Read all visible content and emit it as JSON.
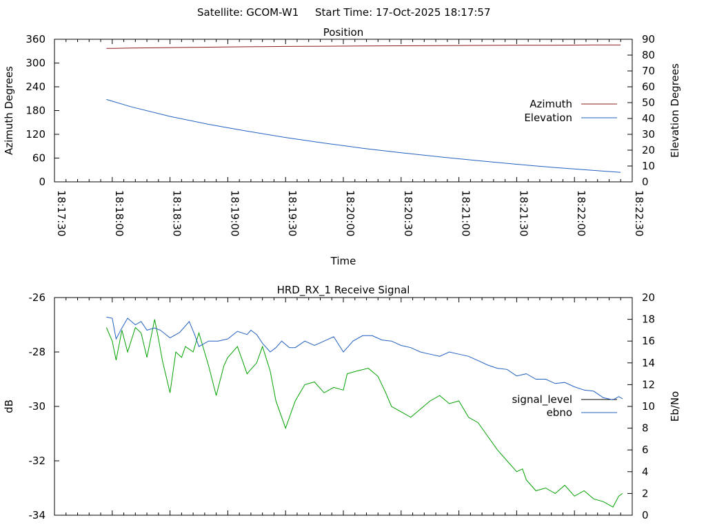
{
  "header": {
    "satellite": "Satellite: GCOM-W1",
    "start_time": "Start Time: 17-Oct-2025 18:17:57"
  },
  "colors": {
    "azimuth": "#8b1a1a",
    "elevation": "#1f5fbf",
    "signal_level": "#00a000",
    "ebno": "#1f5fbf",
    "legend_signal_level": "#000000",
    "axis": "#000000"
  },
  "chart_data": [
    {
      "type": "line",
      "title": "Position",
      "xlabel": "Time",
      "ylabel": "Azimuth Degrees",
      "y2label": "Elevation Degrees",
      "xlim": [
        0,
        300
      ],
      "ylim": [
        0,
        360
      ],
      "y2lim": [
        0,
        90
      ],
      "xticks": [
        0,
        30,
        60,
        90,
        120,
        150,
        180,
        210,
        240,
        270,
        300
      ],
      "xtick_labels": [
        "18:17:30",
        "18:18:00",
        "18:18:30",
        "18:19:00",
        "18:19:30",
        "18:20:00",
        "18:20:30",
        "18:21:00",
        "18:21:30",
        "18:22:00",
        "18:22:30"
      ],
      "yticks": [
        0,
        60,
        120,
        180,
        240,
        300,
        360
      ],
      "ytick_labels": [
        "0",
        "60",
        "120",
        "180",
        "240",
        "300",
        "360"
      ],
      "y2ticks": [
        0,
        10,
        20,
        30,
        40,
        50,
        60,
        70,
        80,
        90
      ],
      "y2tick_labels": [
        "0",
        "10",
        "20",
        "30",
        "40",
        "50",
        "60",
        "70",
        "80",
        "90"
      ],
      "legend": [
        "Azimuth",
        "Elevation"
      ],
      "legend_position": "right",
      "series": [
        {
          "name": "Azimuth",
          "axis": "y",
          "x": [
            27,
            30,
            40,
            60,
            80,
            100,
            120,
            140,
            160,
            180,
            200,
            220,
            240,
            260,
            280,
            294
          ],
          "values": [
            337,
            337,
            338,
            339,
            340,
            341,
            342,
            342.5,
            343,
            343.5,
            344,
            344.5,
            345,
            345,
            345.5,
            345.5
          ]
        },
        {
          "name": "Elevation",
          "axis": "y2",
          "x": [
            27,
            40,
            60,
            80,
            100,
            120,
            140,
            160,
            180,
            200,
            220,
            240,
            260,
            280,
            294
          ],
          "values": [
            52,
            47.3,
            41.3,
            36.3,
            32,
            28,
            24.5,
            21.2,
            18.4,
            15.8,
            13.4,
            11.1,
            9,
            7.2,
            6
          ]
        }
      ]
    },
    {
      "type": "line",
      "title": "HRD_RX_1 Receive Signal",
      "xlabel": "",
      "ylabel": "dB",
      "y2label": "Eb/No",
      "xlim": [
        0,
        300
      ],
      "ylim": [
        -34,
        -26
      ],
      "y2lim": [
        0,
        20
      ],
      "yticks": [
        -34,
        -32,
        -30,
        -28,
        -26
      ],
      "ytick_labels": [
        "-34",
        "-32",
        "-30",
        "-28",
        "-26"
      ],
      "y2ticks": [
        0,
        2,
        4,
        6,
        8,
        10,
        12,
        14,
        16,
        18,
        20
      ],
      "y2tick_labels": [
        "0",
        "2",
        "4",
        "6",
        "8",
        "10",
        "12",
        "14",
        "16",
        "18",
        "20"
      ],
      "legend": [
        "signal_level",
        "ebno"
      ],
      "legend_position": "right",
      "series": [
        {
          "name": "signal_level",
          "axis": "y",
          "x": [
            27,
            30,
            32,
            35,
            38,
            42,
            45,
            48,
            52,
            54,
            56,
            60,
            63,
            66,
            68,
            72,
            75,
            80,
            84,
            88,
            90,
            95,
            100,
            105,
            108,
            112,
            115,
            120,
            125,
            130,
            135,
            140,
            145,
            150,
            152,
            157,
            163,
            168,
            172,
            175,
            180,
            185,
            190,
            195,
            200,
            205,
            210,
            215,
            220,
            225,
            230,
            235,
            240,
            243,
            245,
            250,
            255,
            260,
            265,
            270,
            275,
            280,
            285,
            290,
            293,
            295
          ],
          "values": [
            -27.1,
            -27.6,
            -28.3,
            -27.2,
            -28,
            -27.1,
            -27.3,
            -28.2,
            -26.8,
            -27.5,
            -28.3,
            -29.5,
            -28,
            -28.2,
            -27.8,
            -28,
            -27.3,
            -28.5,
            -29.6,
            -28.5,
            -28.2,
            -27.8,
            -28.8,
            -28.4,
            -27.8,
            -28.7,
            -29.8,
            -30.8,
            -29.8,
            -29.2,
            -29.1,
            -29.5,
            -29.3,
            -29.4,
            -28.8,
            -28.7,
            -28.6,
            -28.9,
            -29.5,
            -30,
            -30.2,
            -30.4,
            -30.1,
            -29.8,
            -29.6,
            -29.9,
            -29.8,
            -30.4,
            -30.6,
            -31.1,
            -31.6,
            -32,
            -32.4,
            -32.3,
            -32.7,
            -33.1,
            -33,
            -33.2,
            -32.9,
            -33.3,
            -33.1,
            -33.4,
            -33.5,
            -33.7,
            -33.3,
            -33.2
          ],
          "legend_color_key": "legend_signal_level"
        },
        {
          "name": "ebno",
          "axis": "y2",
          "x": [
            27,
            30,
            32,
            35,
            38,
            42,
            45,
            48,
            52,
            55,
            60,
            65,
            70,
            73,
            75,
            80,
            85,
            90,
            95,
            100,
            102,
            105,
            108,
            112,
            115,
            118,
            122,
            125,
            130,
            135,
            140,
            145,
            150,
            155,
            160,
            165,
            170,
            175,
            180,
            185,
            190,
            195,
            200,
            205,
            210,
            215,
            220,
            225,
            230,
            235,
            240,
            245,
            250,
            255,
            260,
            265,
            270,
            275,
            280,
            285,
            290,
            293,
            295
          ],
          "values": [
            18.2,
            18.1,
            16.2,
            17.2,
            18.1,
            17.5,
            17.8,
            17,
            17.2,
            17,
            16.3,
            16.8,
            17.8,
            16.5,
            15.5,
            16,
            16,
            16.2,
            16.9,
            16.6,
            17,
            16.6,
            15.8,
            15,
            15.4,
            16,
            15.4,
            15.4,
            16,
            15.6,
            16,
            16.4,
            15,
            16,
            16.5,
            16.5,
            16.1,
            16,
            15.6,
            15.4,
            15,
            14.8,
            14.6,
            15,
            14.8,
            14.6,
            14.2,
            13.8,
            13.5,
            13.4,
            12.8,
            13,
            12.5,
            12.5,
            12.1,
            12.2,
            11.8,
            11.5,
            11.4,
            10.8,
            10.6,
            10.9,
            10.7
          ]
        }
      ]
    }
  ]
}
